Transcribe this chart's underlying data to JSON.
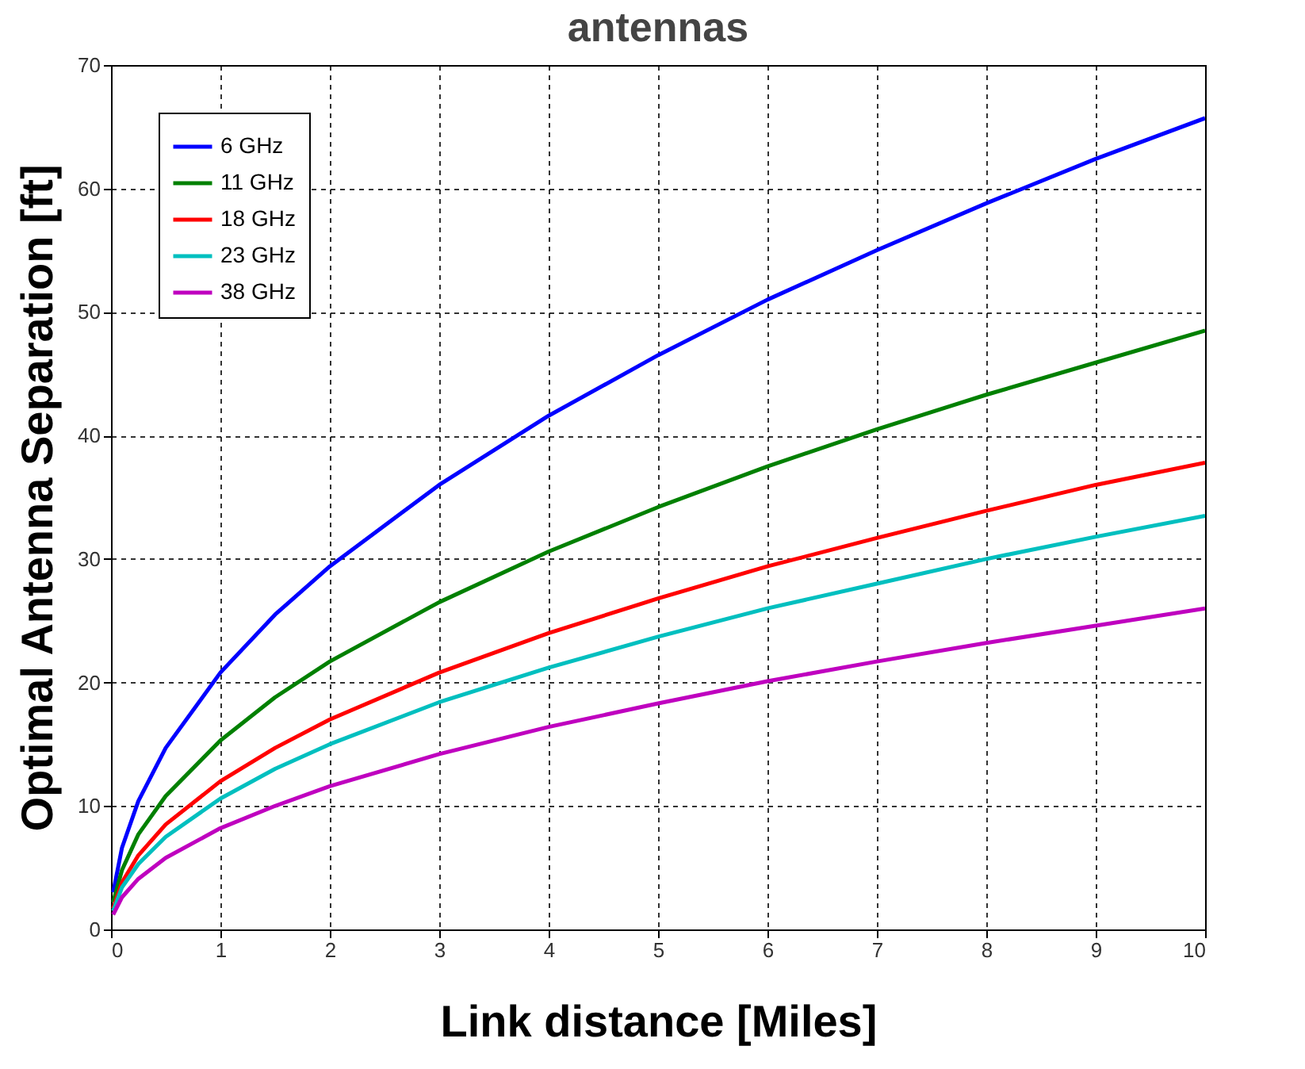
{
  "chart_data": {
    "type": "line",
    "title": "antennas",
    "xlabel": "Link distance [Miles]",
    "ylabel": "Optimal Antenna Separation [ft]",
    "x": [
      0.02,
      0.1,
      0.25,
      0.5,
      1,
      1.5,
      2,
      3,
      4,
      5,
      6,
      7,
      8,
      9,
      10
    ],
    "series": [
      {
        "name": "6 GHz",
        "color": "#0000ff",
        "values": [
          3,
          6.6,
          10.4,
          14.7,
          20.8,
          25.5,
          29.4,
          36,
          41.6,
          46.5,
          51,
          55,
          58.8,
          62.4,
          65.7
        ]
      },
      {
        "name": "11 GHz",
        "color": "#008000",
        "values": [
          2.2,
          4.8,
          7.7,
          10.8,
          15.3,
          18.8,
          21.7,
          26.5,
          30.6,
          34.2,
          37.5,
          40.5,
          43.3,
          45.9,
          48.5
        ]
      },
      {
        "name": "18 GHz",
        "color": "#ff0000",
        "values": [
          1.7,
          3.8,
          6,
          8.5,
          12,
          14.7,
          17,
          20.8,
          24,
          26.8,
          29.4,
          31.7,
          33.9,
          36,
          37.8
        ]
      },
      {
        "name": "23 GHz",
        "color": "#00bfbf",
        "values": [
          1.5,
          3.4,
          5.3,
          7.5,
          10.6,
          13,
          15,
          18.4,
          21.2,
          23.7,
          26,
          28,
          30,
          31.8,
          33.5
        ]
      },
      {
        "name": "38 GHz",
        "color": "#bf00bf",
        "values": [
          1.2,
          2.6,
          4.1,
          5.8,
          8.2,
          10,
          11.6,
          14.2,
          16.4,
          18.3,
          20.1,
          21.7,
          23.2,
          24.6,
          26
        ]
      }
    ],
    "xlim": [
      0,
      10
    ],
    "ylim": [
      0,
      70
    ],
    "xticks": [
      0,
      1,
      2,
      3,
      4,
      5,
      6,
      7,
      8,
      9,
      10
    ],
    "yticks": [
      0,
      10,
      20,
      30,
      40,
      50,
      60,
      70
    ],
    "grid": true,
    "legend": "top left"
  }
}
